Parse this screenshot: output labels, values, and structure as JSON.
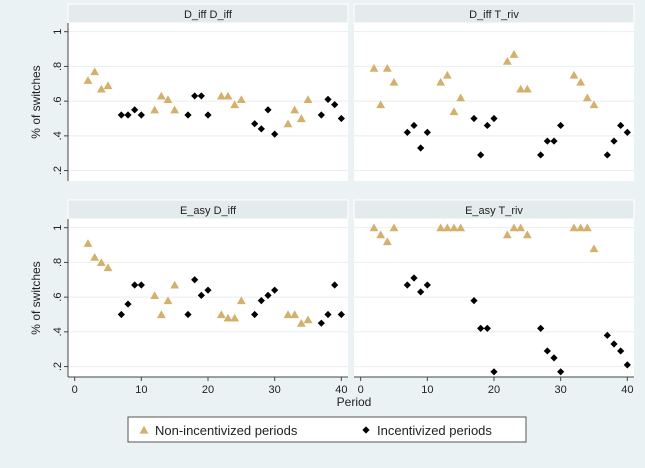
{
  "chart_data": {
    "type": "scatter",
    "xlabel": "Period",
    "ylabel": "% of switches",
    "xlim": [
      -1,
      41
    ],
    "ylim": [
      0.14,
      1.05
    ],
    "x_ticks": [
      0,
      10,
      20,
      30,
      40
    ],
    "y_ticks": [
      0.2,
      0.4,
      0.6,
      0.8,
      1
    ],
    "y_tick_labels": [
      ".2",
      ".4",
      ".6",
      ".8",
      "1"
    ],
    "grid": "horizontal",
    "legend_position": "bottom",
    "legend": [
      {
        "name": "Non-incentivized periods",
        "marker": "triangle",
        "color": "#d4b06a"
      },
      {
        "name": "Incentivized periods",
        "marker": "diamond",
        "color": "#000000"
      }
    ],
    "panels": [
      {
        "title": "D_iff D_iff",
        "non_incentivized": [
          [
            2,
            0.72
          ],
          [
            3,
            0.77
          ],
          [
            4,
            0.67
          ],
          [
            5,
            0.69
          ],
          [
            12,
            0.55
          ],
          [
            13,
            0.63
          ],
          [
            14,
            0.61
          ],
          [
            15,
            0.55
          ],
          [
            22,
            0.63
          ],
          [
            23,
            0.63
          ],
          [
            24,
            0.58
          ],
          [
            25,
            0.61
          ],
          [
            32,
            0.47
          ],
          [
            33,
            0.55
          ],
          [
            34,
            0.5
          ],
          [
            35,
            0.61
          ]
        ],
        "incentivized": [
          [
            7,
            0.52
          ],
          [
            8,
            0.52
          ],
          [
            9,
            0.55
          ],
          [
            10,
            0.52
          ],
          [
            17,
            0.52
          ],
          [
            18,
            0.63
          ],
          [
            19,
            0.63
          ],
          [
            20,
            0.52
          ],
          [
            27,
            0.47
          ],
          [
            28,
            0.44
          ],
          [
            29,
            0.55
          ],
          [
            30,
            0.41
          ],
          [
            37,
            0.52
          ],
          [
            38,
            0.61
          ],
          [
            39,
            0.58
          ],
          [
            40,
            0.5
          ]
        ]
      },
      {
        "title": "D_iff T_riv",
        "non_incentivized": [
          [
            2,
            0.79
          ],
          [
            3,
            0.58
          ],
          [
            4,
            0.79
          ],
          [
            5,
            0.71
          ],
          [
            12,
            0.71
          ],
          [
            13,
            0.75
          ],
          [
            14,
            0.54
          ],
          [
            15,
            0.62
          ],
          [
            22,
            0.83
          ],
          [
            23,
            0.87
          ],
          [
            24,
            0.67
          ],
          [
            25,
            0.67
          ],
          [
            32,
            0.75
          ],
          [
            33,
            0.71
          ],
          [
            34,
            0.62
          ],
          [
            35,
            0.58
          ]
        ],
        "incentivized": [
          [
            7,
            0.42
          ],
          [
            8,
            0.46
          ],
          [
            9,
            0.33
          ],
          [
            10,
            0.42
          ],
          [
            17,
            0.5
          ],
          [
            18,
            0.29
          ],
          [
            19,
            0.46
          ],
          [
            20,
            0.5
          ],
          [
            27,
            0.29
          ],
          [
            28,
            0.37
          ],
          [
            29,
            0.37
          ],
          [
            30,
            0.46
          ],
          [
            37,
            0.29
          ],
          [
            38,
            0.37
          ],
          [
            39,
            0.46
          ],
          [
            40,
            0.42
          ]
        ]
      },
      {
        "title": "E_asy D_iff",
        "non_incentivized": [
          [
            2,
            0.91
          ],
          [
            3,
            0.83
          ],
          [
            4,
            0.8
          ],
          [
            5,
            0.77
          ],
          [
            12,
            0.61
          ],
          [
            13,
            0.5
          ],
          [
            14,
            0.58
          ],
          [
            15,
            0.67
          ],
          [
            22,
            0.5
          ],
          [
            23,
            0.48
          ],
          [
            24,
            0.48
          ],
          [
            25,
            0.58
          ],
          [
            32,
            0.5
          ],
          [
            33,
            0.5
          ],
          [
            34,
            0.45
          ],
          [
            35,
            0.47
          ]
        ],
        "incentivized": [
          [
            7,
            0.5
          ],
          [
            8,
            0.56
          ],
          [
            9,
            0.67
          ],
          [
            10,
            0.67
          ],
          [
            17,
            0.5
          ],
          [
            18,
            0.7
          ],
          [
            19,
            0.61
          ],
          [
            20,
            0.64
          ],
          [
            27,
            0.5
          ],
          [
            28,
            0.58
          ],
          [
            29,
            0.61
          ],
          [
            30,
            0.64
          ],
          [
            37,
            0.45
          ],
          [
            38,
            0.5
          ],
          [
            39,
            0.67
          ],
          [
            40,
            0.5
          ]
        ]
      },
      {
        "title": "E_asy T_riv",
        "non_incentivized": [
          [
            2,
            1.0
          ],
          [
            3,
            0.96
          ],
          [
            4,
            0.92
          ],
          [
            5,
            1.0
          ],
          [
            12,
            1.0
          ],
          [
            13,
            1.0
          ],
          [
            14,
            1.0
          ],
          [
            15,
            1.0
          ],
          [
            22,
            0.96
          ],
          [
            23,
            1.0
          ],
          [
            24,
            1.0
          ],
          [
            25,
            0.96
          ],
          [
            32,
            1.0
          ],
          [
            33,
            1.0
          ],
          [
            34,
            1.0
          ],
          [
            35,
            0.88
          ]
        ],
        "incentivized": [
          [
            7,
            0.67
          ],
          [
            8,
            0.71
          ],
          [
            9,
            0.63
          ],
          [
            10,
            0.67
          ],
          [
            17,
            0.58
          ],
          [
            18,
            0.42
          ],
          [
            19,
            0.42
          ],
          [
            20,
            0.17
          ],
          [
            27,
            0.42
          ],
          [
            28,
            0.29
          ],
          [
            29,
            0.25
          ],
          [
            30,
            0.17
          ],
          [
            37,
            0.38
          ],
          [
            38,
            0.33
          ],
          [
            39,
            0.29
          ],
          [
            40,
            0.21
          ]
        ]
      }
    ]
  }
}
